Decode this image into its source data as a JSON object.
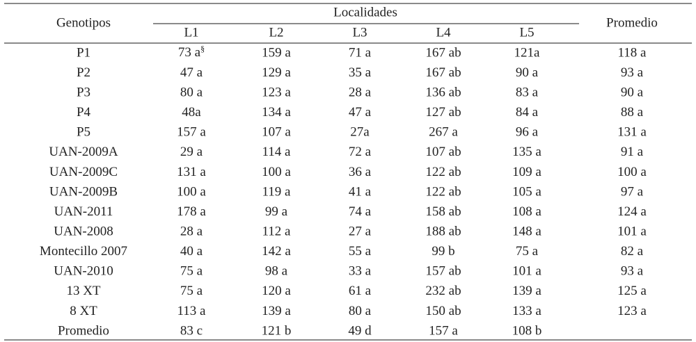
{
  "table": {
    "header": {
      "row_label": "Genotipos",
      "group": "Localidades",
      "columns": [
        "L1",
        "L2",
        "L3",
        "L4",
        "L5"
      ],
      "last": "Promedio"
    },
    "rows": [
      [
        "P1",
        {
          "text": "73 a",
          "sup": "§"
        },
        "159 a",
        "71 a",
        "167 ab",
        "121a",
        "118 a"
      ],
      [
        "P2",
        "47 a",
        "129 a",
        "35 a",
        "167 ab",
        "90 a",
        "93 a"
      ],
      [
        "P3",
        "80 a",
        "123 a",
        "28 a",
        "136 ab",
        "83 a",
        "90 a"
      ],
      [
        "P4",
        "48a",
        "134 a",
        "47 a",
        "127 ab",
        "84 a",
        "88 a"
      ],
      [
        "P5",
        "157 a",
        "107 a",
        "27a",
        "267 a",
        "96 a",
        "131 a"
      ],
      [
        "UAN-2009A",
        "29 a",
        "114 a",
        "72 a",
        "107 ab",
        "135 a",
        "91 a"
      ],
      [
        "UAN-2009C",
        "131 a",
        "100 a",
        "36 a",
        "122 ab",
        "109 a",
        "100 a"
      ],
      [
        "UAN-2009B",
        "100 a",
        "119 a",
        "41 a",
        "122 ab",
        "105 a",
        "97 a"
      ],
      [
        "UAN-2011",
        "178 a",
        "99 a",
        "74 a",
        "158 ab",
        "108 a",
        "124 a"
      ],
      [
        "UAN-2008",
        "28 a",
        "112 a",
        "27 a",
        "188 ab",
        "148 a",
        "101 a"
      ],
      [
        "Montecillo 2007",
        "40 a",
        "142 a",
        "55 a",
        "99 b",
        "75 a",
        "82 a"
      ],
      [
        "UAN-2010",
        "75 a",
        "98 a",
        "33 a",
        "157 ab",
        "101 a",
        "93 a"
      ],
      [
        "13 XT",
        "75 a",
        "120 a",
        "61 a",
        "232 ab",
        "139 a",
        "125 a"
      ],
      [
        "8 XT",
        "113 a",
        "139 a",
        "80 a",
        "150 ab",
        "133 a",
        "123 a"
      ],
      [
        "Promedio",
        "83 c",
        "121 b",
        "49 d",
        "157 a",
        "108 b"
      ]
    ]
  }
}
